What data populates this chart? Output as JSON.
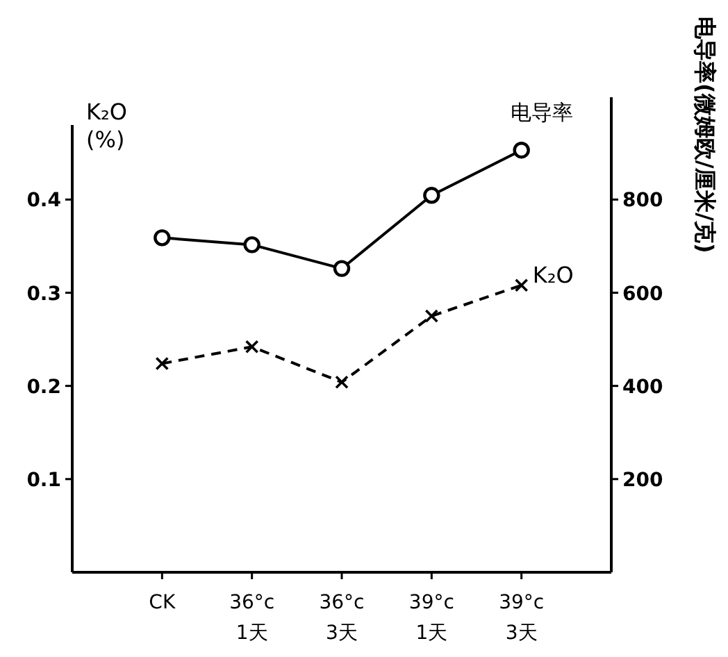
{
  "chart_data": {
    "type": "line",
    "ylabel": "K₂O\n(%)",
    "y2label": "电导率(微姆欧/厘米/克)",
    "categories": [
      "CK",
      "36°c\n1天",
      "36°c\n3天",
      "39°c\n1天",
      "39°c\n3天"
    ],
    "series": [
      {
        "name": "电导率",
        "color": "#000000",
        "axis": "y2",
        "marker": "circle",
        "line_style": "solid",
        "values": [
          718,
          703,
          652,
          809,
          906
        ]
      },
      {
        "name": "K₂O",
        "color": "#000000",
        "marker": "cross",
        "line_style": "dashed",
        "values": [
          0.224,
          0.242,
          0.204,
          0.275,
          0.308
        ]
      }
    ],
    "ylim": [
      0,
      0.48
    ],
    "yticks": [
      {
        "value": 0.1,
        "label": "0.1"
      },
      {
        "value": 0.2,
        "label": "0.2"
      },
      {
        "value": 0.3,
        "label": "0.3"
      },
      {
        "value": 0.4,
        "label": "0.4"
      }
    ],
    "y2lim": [
      0,
      960
    ],
    "y2ticks": [
      200,
      400,
      600,
      800
    ],
    "grid": false
  }
}
